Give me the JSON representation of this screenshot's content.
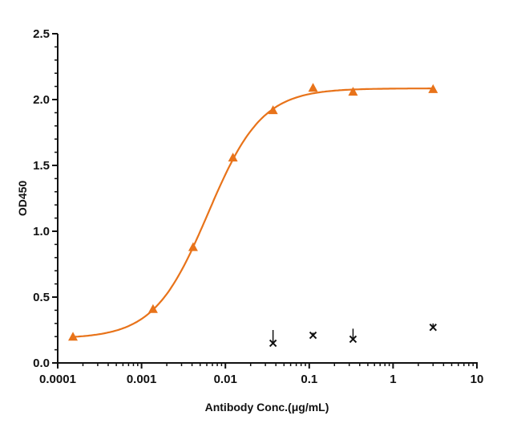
{
  "chart_data": {
    "type": "scatter",
    "xlabel": "Antibody Conc.(μg/mL)",
    "ylabel": "OD450",
    "xscale": "log",
    "xlim": [
      0.0001,
      10
    ],
    "ylim": [
      0,
      2.5
    ],
    "xticks": [
      "0.0001",
      "0.001",
      "0.01",
      "0.1",
      "1",
      "10"
    ],
    "yticks": [
      "0.0",
      "0.5",
      "1.0",
      "1.5",
      "2.0",
      "2.5"
    ],
    "grid": false,
    "series": [
      {
        "marker": "triangle",
        "color": "#E8731A",
        "fit_curve": true,
        "x": [
          0.000152,
          0.00137,
          0.00412,
          0.0123,
          0.037,
          0.111,
          0.333,
          3
        ],
        "y": [
          0.2,
          0.41,
          0.88,
          1.56,
          1.92,
          2.09,
          2.06,
          2.08
        ]
      },
      {
        "marker": "x",
        "color": "#111111",
        "x": [
          0.037,
          0.111,
          0.333,
          3
        ],
        "y": [
          0.15,
          0.21,
          0.18,
          0.27
        ],
        "err": [
          0.1,
          0.02,
          0.08,
          0.03
        ]
      }
    ]
  }
}
